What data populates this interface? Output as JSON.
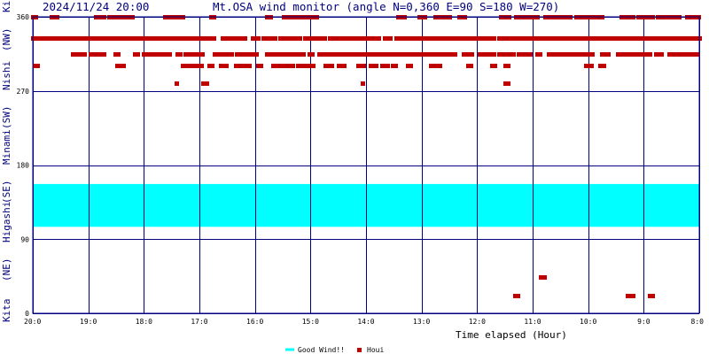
{
  "header": {
    "datetime": "2024/11/24 20:00",
    "title": "Mt.OSA wind monitor (angle N=0,360 E=90 S=180 W=270)"
  },
  "side_labels": [
    "Kita",
    "(NE)",
    "Higashi",
    "(SE)",
    "Minami",
    "(SW)",
    "Nishi",
    "(NW)",
    "Kita"
  ],
  "colors": {
    "band": "#00ffff",
    "points": "#c00000",
    "grid": "#000080",
    "frame": "#000080"
  },
  "chart_data": {
    "type": "scatter",
    "title": "Mt.OSA wind monitor (angle N=0,360 E=90 S=180 W=270)",
    "xlabel": "Time elapsed (Hour)",
    "ylabel": "",
    "xlim": [
      0,
      12
    ],
    "ylim": [
      0,
      360
    ],
    "x_reversed": true,
    "x_tick_labels": [
      "20:0",
      "19:0",
      "18:0",
      "17:0",
      "16:0",
      "15:0",
      "14:0",
      "13:0",
      "12:0",
      "11:0",
      "10:0",
      "9:0",
      "8:0"
    ],
    "y_ticks": [
      0,
      90,
      180,
      270,
      360
    ],
    "y_tick_labels": [
      "0",
      "90",
      "180",
      "270",
      "360"
    ],
    "grid": true,
    "legend_position": "bottom-center",
    "legend": [
      "Good Wind!!",
      "Houi"
    ],
    "good_wind_band": [
      105,
      157
    ],
    "series": [
      {
        "name": "Houi",
        "note": "hours elapsed from 20:00 (x) vs wind angle in degrees (y)",
        "rows": [
          {
            "y": 360,
            "ranges": [
              [
                0.0,
                0.09
              ],
              [
                0.33,
                0.47
              ],
              [
                1.13,
                1.28
              ],
              [
                1.37,
                1.57
              ],
              [
                1.63,
                1.8
              ],
              [
                2.37,
                2.47
              ],
              [
                2.55,
                2.7
              ],
              [
                3.2,
                3.27
              ],
              [
                4.22,
                4.3
              ],
              [
                4.52,
                4.72
              ],
              [
                4.77,
                4.93
              ],
              [
                5.0,
                5.12
              ],
              [
                6.58,
                6.72
              ],
              [
                6.95,
                7.08
              ],
              [
                7.25,
                7.5
              ],
              [
                7.67,
                7.8
              ],
              [
                8.42,
                8.6
              ],
              [
                8.7,
                8.87
              ],
              [
                8.93,
                9.12
              ],
              [
                9.22,
                9.67
              ],
              [
                9.78,
                10.0
              ],
              [
                10.05,
                10.25
              ],
              [
                10.6,
                10.83
              ],
              [
                10.9,
                11.17
              ],
              [
                11.25,
                11.5
              ],
              [
                11.58,
                11.67
              ],
              [
                11.78,
                12.0
              ]
            ]
          },
          {
            "y": 334,
            "ranges": [
              [
                0.0,
                3.27
              ],
              [
                3.42,
                3.83
              ],
              [
                3.95,
                4.08
              ],
              [
                4.15,
                4.35
              ],
              [
                4.45,
                4.83
              ],
              [
                4.9,
                5.25
              ],
              [
                5.35,
                5.65
              ],
              [
                5.72,
                6.25
              ],
              [
                6.33,
                6.45
              ],
              [
                6.55,
                6.95
              ],
              [
                7.0,
                8.33
              ],
              [
                8.4,
                12.0
              ]
            ]
          },
          {
            "y": 315,
            "ranges": [
              [
                0.72,
                0.93
              ],
              [
                1.03,
                1.17
              ],
              [
                1.22,
                1.28
              ],
              [
                1.48,
                1.55
              ],
              [
                1.83,
                1.88
              ],
              [
                2.0,
                2.47
              ],
              [
                2.6,
                2.67
              ],
              [
                2.75,
                3.05
              ],
              [
                3.27,
                3.42
              ],
              [
                3.47,
                3.58
              ],
              [
                3.67,
                4.03
              ],
              [
                4.22,
                4.88
              ],
              [
                4.98,
                5.05
              ],
              [
                5.15,
                7.62
              ],
              [
                7.75,
                7.92
              ],
              [
                8.05,
                8.33
              ],
              [
                8.4,
                8.65
              ],
              [
                8.75,
                8.95
              ],
              [
                9.08,
                9.17
              ],
              [
                9.28,
                9.38
              ],
              [
                9.45,
                9.67
              ],
              [
                9.72,
                10.08
              ],
              [
                10.25,
                10.38
              ],
              [
                10.53,
                10.75
              ],
              [
                10.8,
                11.12
              ],
              [
                11.22,
                11.33
              ],
              [
                11.45,
                11.67
              ],
              [
                11.72,
                12.0
              ]
            ]
          },
          {
            "y": 301,
            "ranges": [
              [
                0.03,
                0.08
              ],
              [
                1.52,
                1.62
              ],
              [
                2.7,
                2.85
              ],
              [
                2.93,
                3.05
              ],
              [
                3.18,
                3.23
              ],
              [
                3.38,
                3.48
              ],
              [
                3.65,
                3.75
              ],
              [
                3.8,
                3.93
              ],
              [
                4.05,
                4.12
              ],
              [
                4.33,
                4.48
              ],
              [
                4.52,
                4.67
              ],
              [
                4.77,
                4.87
              ],
              [
                4.95,
                5.05
              ],
              [
                5.27,
                5.4
              ],
              [
                5.5,
                5.63
              ],
              [
                5.85,
                5.97
              ],
              [
                6.08,
                6.22
              ],
              [
                6.28,
                6.38
              ],
              [
                6.48,
                6.55
              ],
              [
                6.75,
                6.83
              ],
              [
                7.17,
                7.33
              ],
              [
                7.83,
                7.9
              ],
              [
                8.27,
                8.33
              ],
              [
                8.5,
                8.57
              ],
              [
                9.95,
                10.08
              ],
              [
                10.22,
                10.3
              ]
            ]
          },
          {
            "y": 279,
            "ranges": [
              [
                2.58,
                2.62
              ],
              [
                3.07,
                3.13
              ],
              [
                5.93,
                5.97
              ],
              [
                8.5,
                8.55
              ]
            ]
          },
          {
            "y": 44,
            "ranges": [
              [
                9.15,
                9.2
              ]
            ]
          },
          {
            "y": 21,
            "ranges": [
              [
                8.68,
                8.73
              ],
              [
                10.7,
                10.83
              ],
              [
                11.1,
                11.15
              ]
            ]
          }
        ]
      }
    ]
  },
  "legend_labels": {
    "good": "Good Wind!!",
    "houi": "Houi"
  }
}
